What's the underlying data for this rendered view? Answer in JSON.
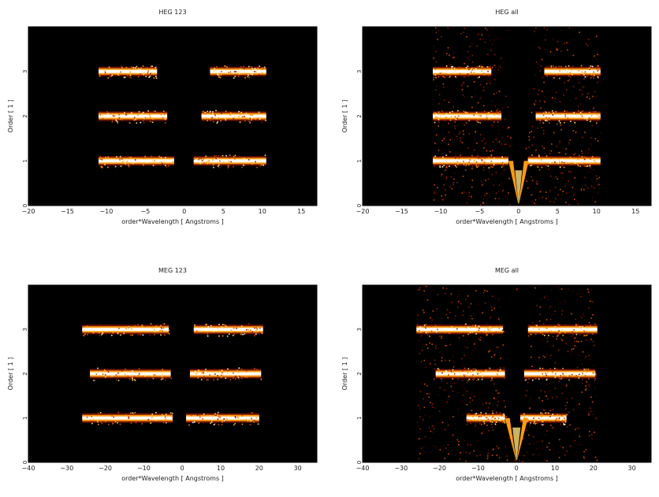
{
  "figure": {
    "background": "#000000",
    "colormap": [
      "#000000",
      "#3a0500",
      "#8a1a00",
      "#d04a00",
      "#ff9a10",
      "#ffe080",
      "#ffffff"
    ]
  },
  "chart_data": [
    {
      "type": "heatmap",
      "title": "HEG 123",
      "xlabel": "order*Wavelength [ Angstroms ]",
      "ylabel": "Order [ 1 ]",
      "xlim": [
        -20,
        17
      ],
      "ylim": [
        0,
        4
      ],
      "xticks": [
        "−20",
        "−15",
        "−10",
        "−5",
        "0",
        "5",
        "10",
        "15"
      ],
      "xtick_values": [
        -20,
        -15,
        -10,
        -5,
        0,
        5,
        10,
        15
      ],
      "yticks": [
        "0",
        "1",
        "2",
        "3"
      ],
      "ytick_values": [
        0,
        1,
        2,
        3
      ],
      "bands": [
        {
          "order": 1,
          "x": [
            -11,
            -1.3
          ],
          "peak": -3.5
        },
        {
          "order": 1,
          "x": [
            1.2,
            10.5
          ],
          "peak": 6
        },
        {
          "order": 2,
          "x": [
            -11,
            -2.2
          ],
          "peak": -4.5
        },
        {
          "order": 2,
          "x": [
            2.2,
            10.5
          ],
          "peak": 6
        },
        {
          "order": 3,
          "x": [
            -11,
            -3.5
          ],
          "peak": -5.5
        },
        {
          "order": 3,
          "x": [
            3.3,
            10.5
          ],
          "peak": 6
        }
      ],
      "v_features": []
    },
    {
      "type": "heatmap",
      "title": "HEG all",
      "xlabel": "order*Wavelength [ Angstroms ]",
      "ylabel": "Order [ 1 ]",
      "xlim": [
        -20,
        17
      ],
      "ylim": [
        0,
        4
      ],
      "xticks": [
        "−20",
        "−15",
        "−10",
        "−5",
        "0",
        "5",
        "10",
        "15"
      ],
      "xtick_values": [
        -20,
        -15,
        -10,
        -5,
        0,
        5,
        10,
        15
      ],
      "yticks": [
        "0",
        "1",
        "2",
        "3"
      ],
      "ytick_values": [
        0,
        1,
        2,
        3
      ],
      "bands": [
        {
          "order": 1,
          "x": [
            -11,
            -1.3
          ],
          "peak": -3.5
        },
        {
          "order": 1,
          "x": [
            1.2,
            10.5
          ],
          "peak": 6
        },
        {
          "order": 2,
          "x": [
            -11,
            -2.2
          ],
          "peak": -4.5
        },
        {
          "order": 2,
          "x": [
            2.2,
            10.5
          ],
          "peak": 6
        },
        {
          "order": 3,
          "x": [
            -11,
            -3.5
          ],
          "peak": -5.5
        },
        {
          "order": 3,
          "x": [
            3.3,
            10.5
          ],
          "peak": 6
        }
      ],
      "background_region": {
        "x": [
          -11,
          10.5
        ],
        "y": [
          0,
          4
        ]
      },
      "v_features": [
        {
          "x0": 0,
          "y0": 0,
          "spread": 1.3,
          "top": 1.0
        }
      ]
    },
    {
      "type": "heatmap",
      "title": "MEG 123",
      "xlabel": "order*Wavelength [ Angstroms ]",
      "ylabel": "Order [ 1 ]",
      "xlim": [
        -40,
        35
      ],
      "ylim": [
        0,
        4
      ],
      "xticks": [
        "−40",
        "−30",
        "−20",
        "−10",
        "0",
        "10",
        "20",
        "30"
      ],
      "xtick_values": [
        -40,
        -30,
        -20,
        -10,
        0,
        10,
        20,
        30
      ],
      "yticks": [
        "0",
        "1",
        "2",
        "3"
      ],
      "ytick_values": [
        0,
        1,
        2,
        3
      ],
      "bands": [
        {
          "order": 1,
          "x": [
            -26,
            -2.5
          ],
          "peak": -8
        },
        {
          "order": 1,
          "x": [
            1,
            20
          ],
          "peak": 12
        },
        {
          "order": 2,
          "x": [
            -24,
            -3
          ],
          "peak": -10
        },
        {
          "order": 2,
          "x": [
            2,
            20.5
          ],
          "peak": 15
        },
        {
          "order": 3,
          "x": [
            -26,
            -3.5
          ],
          "peak": -12
        },
        {
          "order": 3,
          "x": [
            3,
            21
          ],
          "peak": 15
        }
      ],
      "v_features": []
    },
    {
      "type": "heatmap",
      "title": "MEG all",
      "xlabel": "order*Wavelength [ Angstroms ]",
      "ylabel": "Order [ 1 ]",
      "xlim": [
        -40,
        35
      ],
      "ylim": [
        0,
        4
      ],
      "xticks": [
        "−40",
        "−30",
        "−20",
        "−10",
        "0",
        "10",
        "20",
        "30"
      ],
      "xtick_values": [
        -40,
        -30,
        -20,
        -10,
        0,
        10,
        20,
        30
      ],
      "yticks": [
        "0",
        "1",
        "2",
        "3"
      ],
      "ytick_values": [
        0,
        1,
        2,
        3
      ],
      "bands": [
        {
          "order": 1,
          "x": [
            -13,
            -3
          ],
          "peak": -7
        },
        {
          "order": 1,
          "x": [
            1,
            13
          ],
          "peak": 7
        },
        {
          "order": 2,
          "x": [
            -21,
            -3
          ],
          "peak": -10
        },
        {
          "order": 2,
          "x": [
            2,
            20.5
          ],
          "peak": 15
        },
        {
          "order": 3,
          "x": [
            -26,
            -3.5
          ],
          "peak": -12
        },
        {
          "order": 3,
          "x": [
            3,
            21
          ],
          "peak": 15
        }
      ],
      "background_region": {
        "x": [
          -26,
          21
        ],
        "y": [
          0,
          4
        ]
      },
      "v_features": [
        {
          "x0": 0,
          "y0": 0,
          "spread": 3,
          "top": 1.0
        }
      ]
    }
  ]
}
